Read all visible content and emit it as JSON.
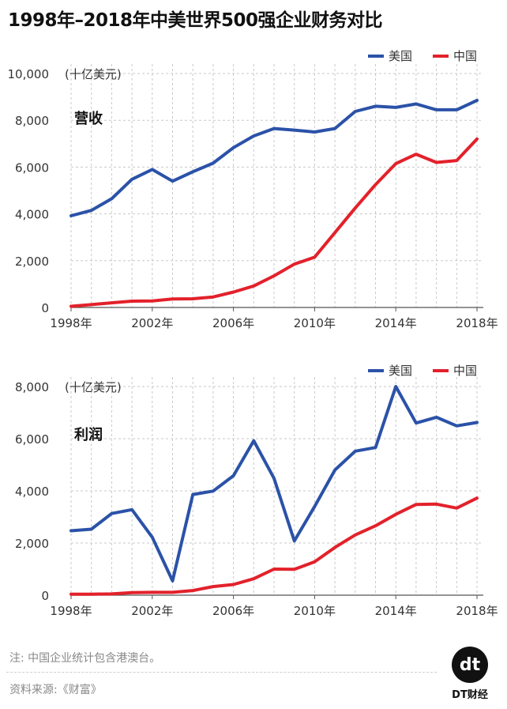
{
  "title": "1998年–2018年中美世界500强企业财务对比",
  "note": "注: 中国企业统计包含港澳台。",
  "source": "资料来源:《财富》",
  "logo": {
    "mark": "dt",
    "brand": "DT财经"
  },
  "colors": {
    "us": "#2b52a8",
    "china": "#e3212b",
    "grid": "#c8c8c8",
    "axis": "#555555"
  },
  "chart_data": [
    {
      "type": "line",
      "title": "营收",
      "unit_label": "(十亿美元)",
      "x": [
        1998,
        1999,
        2000,
        2001,
        2002,
        2003,
        2004,
        2005,
        2006,
        2007,
        2008,
        2009,
        2010,
        2011,
        2012,
        2013,
        2014,
        2015,
        2016,
        2017,
        2018
      ],
      "x_tick_labels": [
        "1998年",
        "2002年",
        "2006年",
        "2010年",
        "2014年",
        "2018年"
      ],
      "x_ticks": [
        1998,
        2002,
        2006,
        2010,
        2014,
        2018
      ],
      "ylim": [
        0,
        10000
      ],
      "y_ticks": [
        0,
        2000,
        4000,
        6000,
        8000,
        10000
      ],
      "y_tick_labels": [
        "0",
        "2,000",
        "4,000",
        "6,000",
        "8,000",
        "10,000"
      ],
      "legend": "top-right",
      "series": [
        {
          "name": "美国",
          "key": "us",
          "values": [
            3920,
            4150,
            4650,
            5480,
            5900,
            5400,
            5800,
            6170,
            6830,
            7330,
            7650,
            7580,
            7500,
            7650,
            8380,
            8600,
            8550,
            8700,
            8450,
            8450,
            8850
          ]
        },
        {
          "name": "中国",
          "key": "china",
          "values": [
            50,
            120,
            200,
            270,
            280,
            360,
            370,
            450,
            660,
            920,
            1350,
            1850,
            2150,
            3200,
            4250,
            5250,
            6150,
            6550,
            6200,
            6280,
            7200
          ]
        }
      ]
    },
    {
      "type": "line",
      "title": "利润",
      "unit_label": "(十亿美元)",
      "x": [
        1998,
        1999,
        2000,
        2001,
        2002,
        2003,
        2004,
        2005,
        2006,
        2007,
        2008,
        2009,
        2010,
        2011,
        2012,
        2013,
        2014,
        2015,
        2016,
        2017,
        2018
      ],
      "x_tick_labels": [
        "1998年",
        "2002年",
        "2006年",
        "2010年",
        "2014年",
        "2018年"
      ],
      "x_ticks": [
        1998,
        2002,
        2006,
        2010,
        2014,
        2018
      ],
      "ylim": [
        0,
        8000
      ],
      "y_ticks": [
        0,
        2000,
        4000,
        6000,
        8000
      ],
      "y_tick_labels": [
        "0",
        "2,000",
        "4,000",
        "6,000",
        "8,000"
      ],
      "legend": "top-right",
      "series": [
        {
          "name": "美国",
          "key": "us",
          "values": [
            2470,
            2530,
            3130,
            3280,
            2220,
            550,
            3860,
            3990,
            4580,
            5920,
            4480,
            2080,
            3400,
            4800,
            5520,
            5660,
            8000,
            6600,
            6820,
            6490,
            6620
          ]
        },
        {
          "name": "中国",
          "key": "china",
          "values": [
            40,
            40,
            50,
            100,
            110,
            110,
            180,
            330,
            410,
            630,
            1000,
            990,
            1280,
            1830,
            2310,
            2660,
            3100,
            3480,
            3490,
            3340,
            3720
          ]
        }
      ]
    }
  ]
}
